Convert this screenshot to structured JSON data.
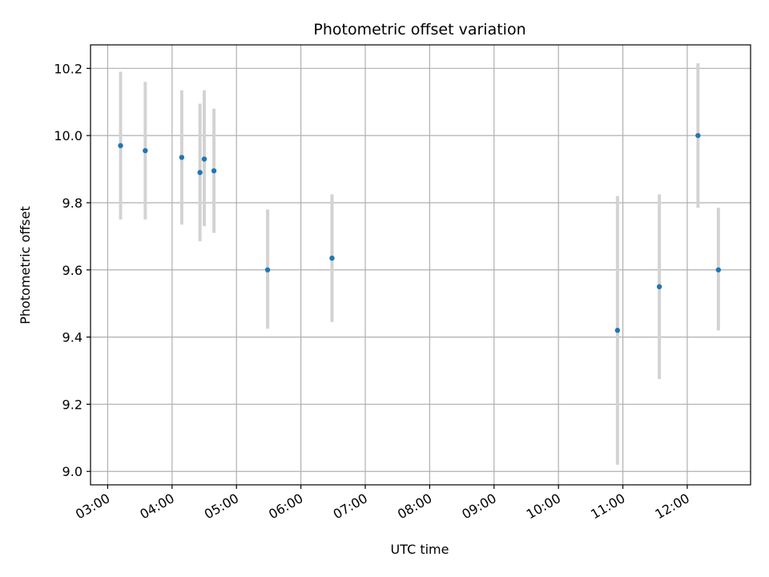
{
  "chart_data": {
    "type": "scatter",
    "title": "Photometric offset variation",
    "xlabel": "UTC time",
    "ylabel": "Photometric offset",
    "grid": true,
    "x_ticks": [
      "03:00",
      "04:00",
      "05:00",
      "06:00",
      "07:00",
      "08:00",
      "09:00",
      "10:00",
      "11:00",
      "12:00"
    ],
    "y_ticks": [
      "9.0",
      "9.2",
      "9.4",
      "9.6",
      "9.8",
      "10.0",
      "10.2"
    ],
    "xlim": [
      "02:44",
      "12:59"
    ],
    "ylim": [
      8.96,
      10.27
    ],
    "colors": {
      "points": "#1f77b4",
      "errorbars": "#d3d3d3",
      "grid": "#b0b0b0"
    },
    "series": [
      {
        "points": [
          {
            "x": "03:12",
            "y": 9.97,
            "ylow": 9.75,
            "yhigh": 10.19
          },
          {
            "x": "03:35",
            "y": 9.955,
            "ylow": 9.75,
            "yhigh": 10.16
          },
          {
            "x": "04:09",
            "y": 9.935,
            "ylow": 9.735,
            "yhigh": 10.135
          },
          {
            "x": "04:26",
            "y": 9.89,
            "ylow": 9.685,
            "yhigh": 10.095
          },
          {
            "x": "04:30",
            "y": 9.93,
            "ylow": 9.73,
            "yhigh": 10.135
          },
          {
            "x": "04:39",
            "y": 9.895,
            "ylow": 9.71,
            "yhigh": 10.08
          },
          {
            "x": "05:29",
            "y": 9.6,
            "ylow": 9.425,
            "yhigh": 9.78
          },
          {
            "x": "06:29",
            "y": 9.635,
            "ylow": 9.445,
            "yhigh": 9.825
          },
          {
            "x": "10:55",
            "y": 9.42,
            "ylow": 9.02,
            "yhigh": 9.82
          },
          {
            "x": "11:34",
            "y": 9.55,
            "ylow": 9.275,
            "yhigh": 9.825
          },
          {
            "x": "12:10",
            "y": 10.0,
            "ylow": 9.785,
            "yhigh": 10.215
          },
          {
            "x": "12:29",
            "y": 9.6,
            "ylow": 9.42,
            "yhigh": 9.785
          }
        ]
      }
    ]
  }
}
